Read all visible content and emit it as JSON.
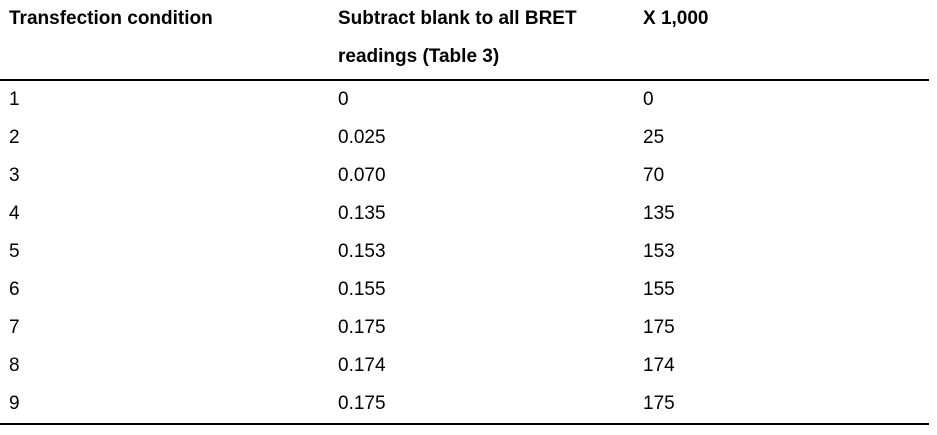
{
  "table": {
    "headers": [
      "Transfection condition",
      "Subtract blank to all BRET readings (Table 3)",
      "X 1,000"
    ],
    "rows": [
      [
        "1",
        "0",
        "0"
      ],
      [
        "2",
        "0.025",
        "25"
      ],
      [
        "3",
        "0.070",
        "70"
      ],
      [
        "4",
        "0.135",
        "135"
      ],
      [
        "5",
        "0.153",
        "153"
      ],
      [
        "6",
        "0.155",
        "155"
      ],
      [
        "7",
        "0.175",
        "175"
      ],
      [
        "8",
        "0.174",
        "174"
      ],
      [
        "9",
        "0.175",
        "175"
      ]
    ]
  }
}
